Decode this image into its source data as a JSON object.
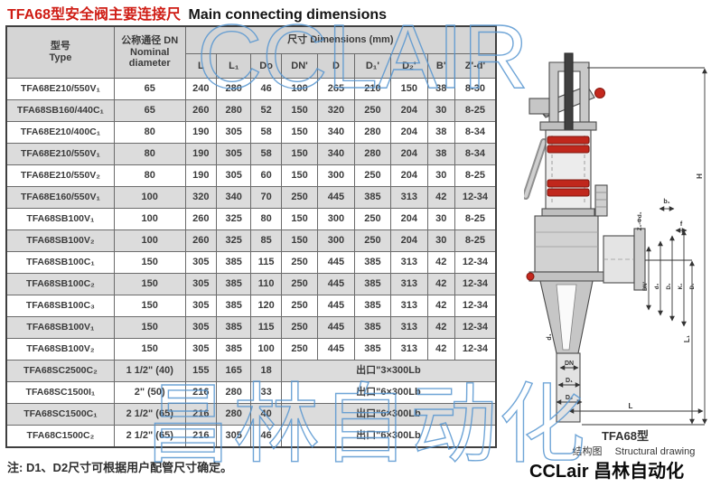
{
  "title": {
    "cn": "TFA68型安全阀主要连接尺",
    "en": "Main connecting dimensions"
  },
  "watermark": {
    "top": "CCLAIR",
    "bottom": "昌林自动化",
    "color": "#5695d0"
  },
  "table": {
    "header": {
      "type_cn": "型号",
      "type_en": "Type",
      "dn_cn": "公称通径 DN",
      "dn_en1": "Nominal",
      "dn_en2": "diameter",
      "dims": "尺寸  Dimensions (mm)",
      "cols": [
        "L",
        "L₁",
        "Do",
        "DN'",
        "D",
        "D₁'",
        "D₂'",
        "B'",
        "Z'-d'"
      ]
    },
    "rows": [
      {
        "model": "TFA68E210/550V₁",
        "dn": "65",
        "cells": [
          "240",
          "280",
          "46",
          "100",
          "265",
          "210",
          "150",
          "38",
          "8-30"
        ]
      },
      {
        "model": "TFA68SB160/440C₁",
        "dn": "65",
        "cells": [
          "260",
          "280",
          "52",
          "150",
          "320",
          "250",
          "204",
          "30",
          "8-25"
        ]
      },
      {
        "model": "TFA68E210/400C₁",
        "dn": "80",
        "cells": [
          "190",
          "305",
          "58",
          "150",
          "340",
          "280",
          "204",
          "38",
          "8-34"
        ]
      },
      {
        "model": "TFA68E210/550V₁",
        "dn": "80",
        "cells": [
          "190",
          "305",
          "58",
          "150",
          "340",
          "280",
          "204",
          "38",
          "8-34"
        ]
      },
      {
        "model": "TFA68E210/550V₂",
        "dn": "80",
        "cells": [
          "190",
          "305",
          "60",
          "150",
          "300",
          "250",
          "204",
          "30",
          "8-25"
        ]
      },
      {
        "model": "TFA68E160/550V₁",
        "dn": "100",
        "cells": [
          "320",
          "340",
          "70",
          "250",
          "445",
          "385",
          "313",
          "42",
          "12-34"
        ]
      },
      {
        "model": "TFA68SB100V₁",
        "dn": "100",
        "cells": [
          "260",
          "325",
          "80",
          "150",
          "300",
          "250",
          "204",
          "30",
          "8-25"
        ]
      },
      {
        "model": "TFA68SB100V₂",
        "dn": "100",
        "cells": [
          "260",
          "325",
          "85",
          "150",
          "300",
          "250",
          "204",
          "30",
          "8-25"
        ]
      },
      {
        "model": "TFA68SB100C₁",
        "dn": "150",
        "cells": [
          "305",
          "385",
          "115",
          "250",
          "445",
          "385",
          "313",
          "42",
          "12-34"
        ]
      },
      {
        "model": "TFA68SB100C₂",
        "dn": "150",
        "cells": [
          "305",
          "385",
          "110",
          "250",
          "445",
          "385",
          "313",
          "42",
          "12-34"
        ]
      },
      {
        "model": "TFA68SB100C₃",
        "dn": "150",
        "cells": [
          "305",
          "385",
          "120",
          "250",
          "445",
          "385",
          "313",
          "42",
          "12-34"
        ]
      },
      {
        "model": "TFA68SB100V₁",
        "dn": "150",
        "cells": [
          "305",
          "385",
          "115",
          "250",
          "445",
          "385",
          "313",
          "42",
          "12-34"
        ]
      },
      {
        "model": "TFA68SB100V₂",
        "dn": "150",
        "cells": [
          "305",
          "385",
          "100",
          "250",
          "445",
          "385",
          "313",
          "42",
          "12-34"
        ]
      },
      {
        "model": "TFA68SC2500C₂",
        "dn": "1 1/2\" (40)",
        "cells": [
          "155",
          "165",
          "18"
        ],
        "outlet": "出口\"3×300Lb"
      },
      {
        "model": "TFA68SC1500I₁",
        "dn": "2\" (50)",
        "cells": [
          "216",
          "280",
          "33"
        ],
        "outlet": "出口\"6×300Lb"
      },
      {
        "model": "TFA68SC1500C₁",
        "dn": "2 1/2\" (65)",
        "cells": [
          "216",
          "280",
          "40"
        ],
        "outlet": "出口\"6×300Lb"
      },
      {
        "model": "TFA68C1500C₂",
        "dn": "2 1/2\" (65)",
        "cells": [
          "216",
          "305",
          "46"
        ],
        "outlet": "出口\"6×300Lb"
      }
    ]
  },
  "note": "注: D1、D2尺寸可根据用户配管尺寸确定。",
  "drawing": {
    "labels": {
      "h": "H",
      "l1": "L₁",
      "l": "L",
      "dn_bottom": "DN",
      "d1_bottom": "D₁",
      "d2_bottom": "D₂",
      "d1_cone": "d₁",
      "z1": "Z₁-Φd₁",
      "b1": "b₁",
      "f": "f",
      "out1": "DN'",
      "out2": "d₃",
      "out3": "D₂",
      "out4": "K₁",
      "out5": "D₁"
    },
    "caption": {
      "model": "TFA68型",
      "cn": "结构图",
      "en": "Structural drawing"
    },
    "brand": "CCLair 昌林自动化"
  }
}
